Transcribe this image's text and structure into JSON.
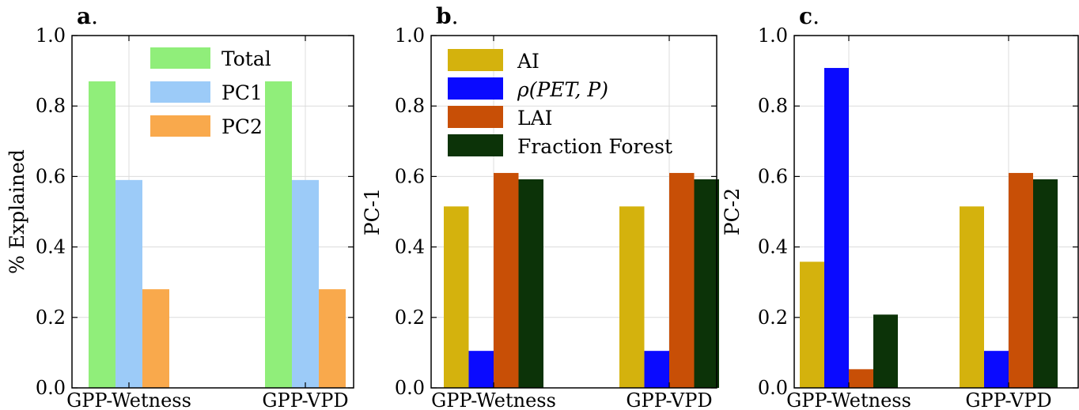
{
  "chart_data": [
    {
      "type": "bar",
      "panel_letter": "a",
      "panel_suffix": ".",
      "categories": [
        "GPP-Wetness",
        "GPP-VPD"
      ],
      "series": [
        {
          "name": "Total",
          "values": [
            0.87,
            0.87
          ],
          "color": "#90ee7a"
        },
        {
          "name": "PC1",
          "values": [
            0.59,
            0.59
          ],
          "color": "#9ccbf8"
        },
        {
          "name": "PC2",
          "values": [
            0.28,
            0.28
          ],
          "color": "#f9a94c"
        }
      ],
      "slots": 3,
      "ylabel": "% Explained",
      "ylim": [
        0,
        1.0
      ],
      "yticks": [
        "0.0",
        "0.2",
        "0.4",
        "0.6",
        "0.8",
        "1.0"
      ],
      "grid": true,
      "legend_position": "top-right"
    },
    {
      "type": "bar",
      "panel_letter": "b",
      "panel_suffix": ".",
      "categories": [
        "GPP-Wetness",
        "GPP-VPD"
      ],
      "series": [
        {
          "name": "AI",
          "values": [
            0.515,
            0.515
          ],
          "color": "#d4b20d"
        },
        {
          "name": "ρ(PET, P)",
          "values": [
            0.105,
            0.105
          ],
          "color": "#0a0aff"
        },
        {
          "name": "LAI",
          "values": [
            0.61,
            0.61
          ],
          "color": "#c84f06"
        },
        {
          "name": "Fraction Forest",
          "values": [
            0.592,
            0.592
          ],
          "color": "#0c3308"
        }
      ],
      "slots": 4,
      "ylabel": "PC-1",
      "ylim": [
        0,
        1.0
      ],
      "yticks": [
        "0.0",
        "0.2",
        "0.4",
        "0.6",
        "0.8",
        "1.0"
      ],
      "grid": true,
      "legend_position": "top-left"
    },
    {
      "type": "bar",
      "panel_letter": "c",
      "panel_suffix": ".",
      "categories": [
        "GPP-Wetness",
        "GPP-VPD"
      ],
      "series": [
        {
          "name": "AI",
          "values": [
            0.358,
            0.515
          ],
          "color": "#d4b20d"
        },
        {
          "name": "ρ(PET, P)",
          "values": [
            0.908,
            0.105
          ],
          "color": "#0a0aff"
        },
        {
          "name": "LAI",
          "values": [
            0.053,
            0.61
          ],
          "color": "#c84f06"
        },
        {
          "name": "Fraction Forest",
          "values": [
            0.208,
            0.592
          ],
          "color": "#0c3308"
        }
      ],
      "slots": 4,
      "ylabel": "PC-2",
      "ylim": [
        0,
        1.0
      ],
      "yticks": [
        "0.0",
        "0.2",
        "0.4",
        "0.6",
        "0.8",
        "1.0"
      ],
      "grid": true,
      "legend_position": "none"
    }
  ]
}
